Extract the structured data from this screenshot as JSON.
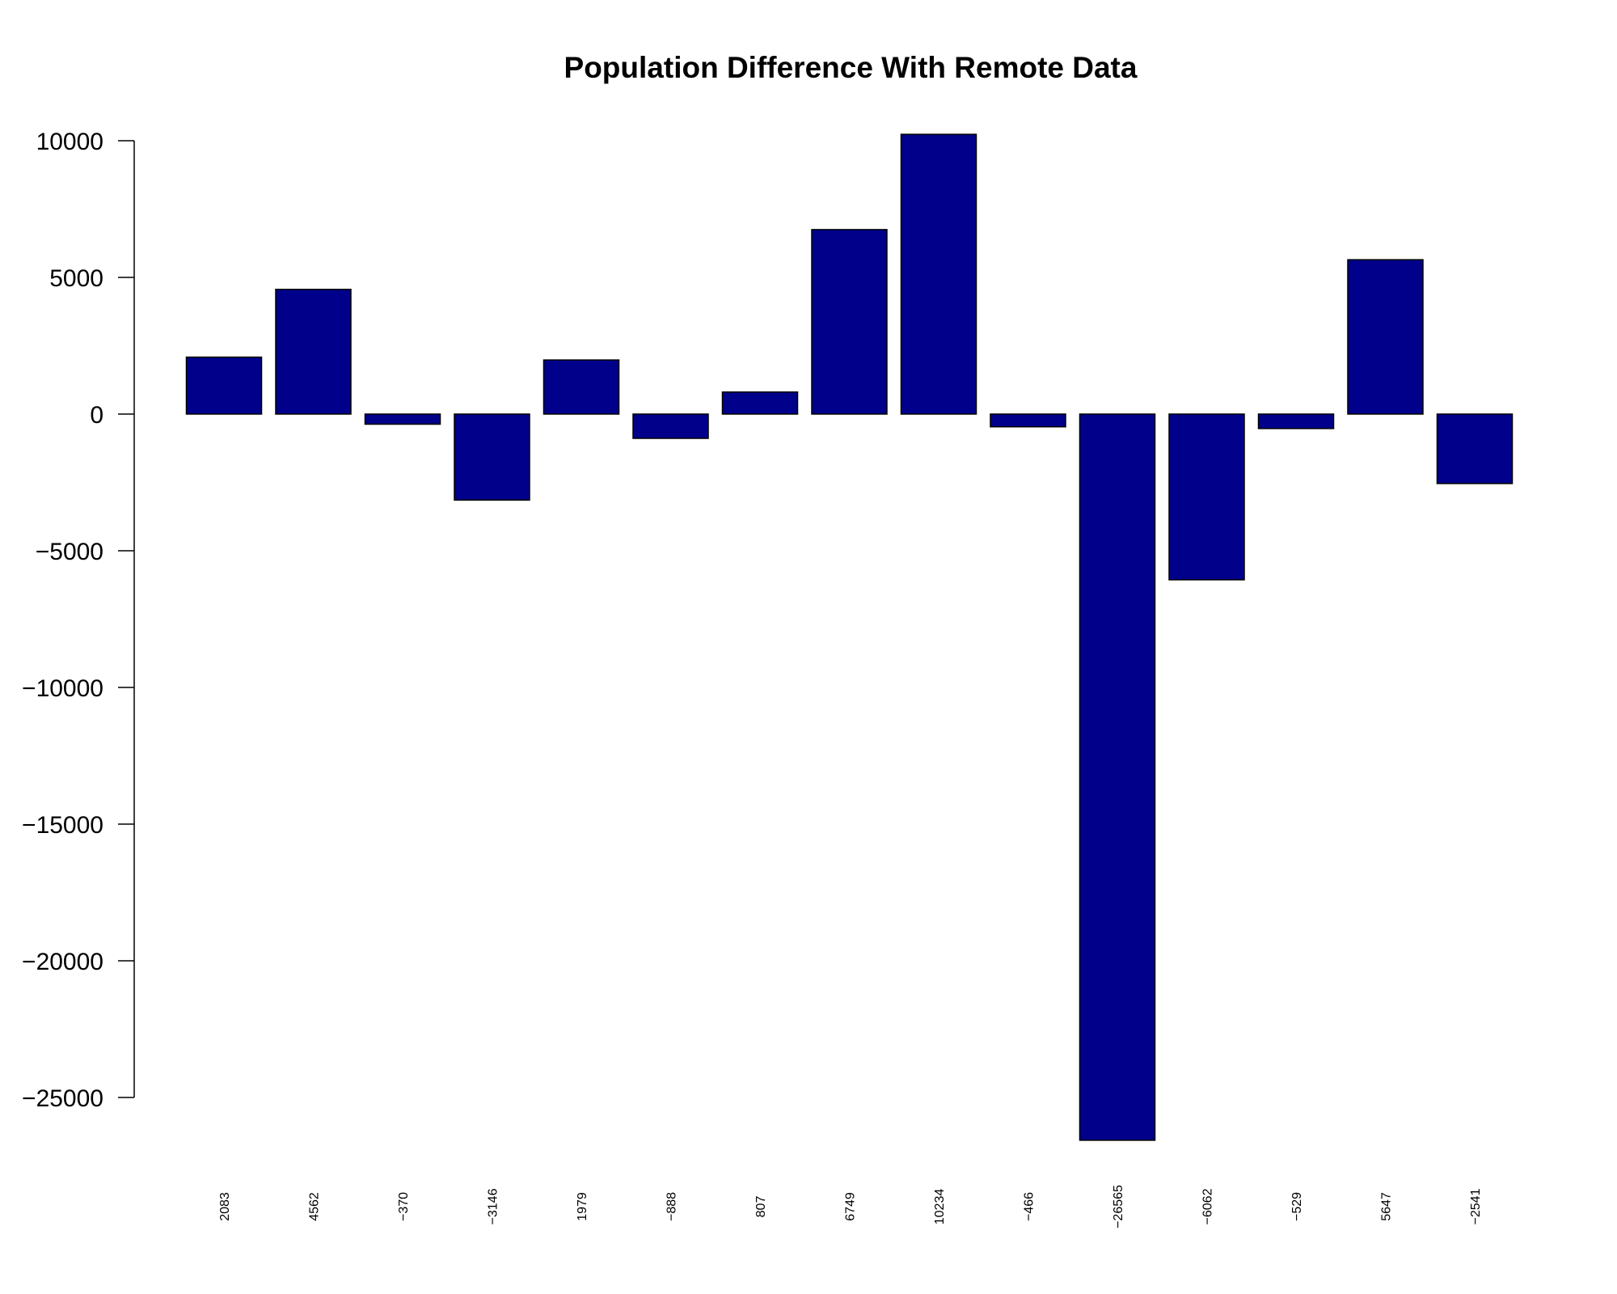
{
  "chart_data": {
    "type": "bar",
    "title": "Population Difference With Remote Data",
    "xlabel": "",
    "ylabel": "",
    "categories": [
      "2083",
      "4562",
      "−370",
      "−3146",
      "1979",
      "−888",
      "807",
      "6749",
      "10234",
      "−466",
      "−26565",
      "−6062",
      "−529",
      "5647",
      "−2541"
    ],
    "values": [
      2083,
      4562,
      -370,
      -3146,
      1979,
      -888,
      807,
      6749,
      10234,
      -466,
      -26565,
      -6062,
      -529,
      5647,
      -2541
    ],
    "yticks": [
      10000,
      5000,
      0,
      -5000,
      -10000,
      -15000,
      -20000,
      -25000
    ],
    "ytick_labels": [
      "10000",
      "5000",
      "0",
      "−5000",
      "−10000",
      "−15000",
      "−20000",
      "−25000"
    ],
    "ylim": [
      -26565,
      10234
    ],
    "bar_color": "#00008b",
    "bar_border_color": "#000000",
    "grid": false,
    "legend": "none"
  }
}
